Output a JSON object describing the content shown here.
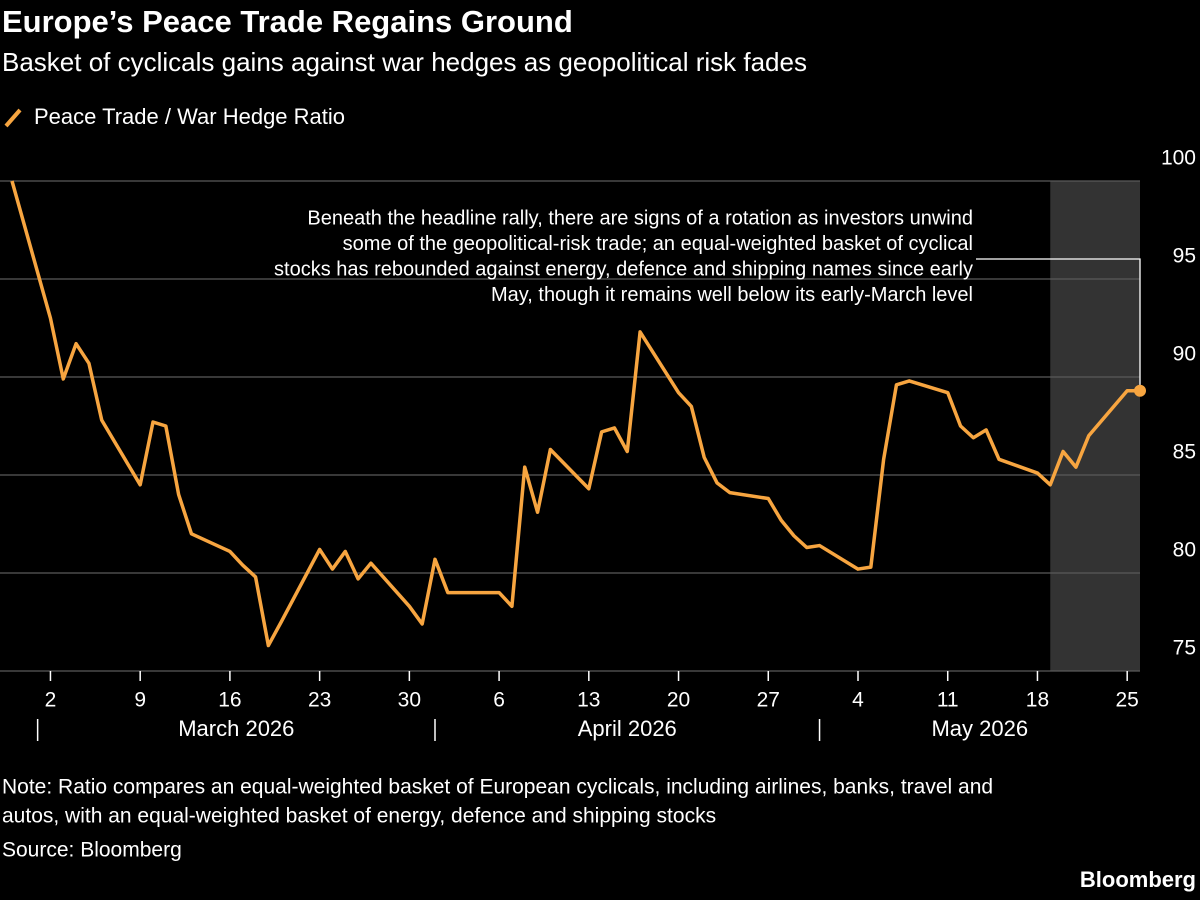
{
  "chart_data": {
    "type": "line",
    "title": "Europe’s Peace Trade Regains Ground",
    "subtitle": "Basket of cyclicals gains against war hedges as geopolitical risk fades",
    "x": [
      "2026-02-27",
      "2026-03-02",
      "2026-03-03",
      "2026-03-04",
      "2026-03-05",
      "2026-03-06",
      "2026-03-09",
      "2026-03-10",
      "2026-03-11",
      "2026-03-12",
      "2026-03-13",
      "2026-03-16",
      "2026-03-17",
      "2026-03-18",
      "2026-03-19",
      "2026-03-20",
      "2026-03-23",
      "2026-03-24",
      "2026-03-25",
      "2026-03-26",
      "2026-03-27",
      "2026-03-30",
      "2026-03-31",
      "2026-04-01",
      "2026-04-02",
      "2026-04-06",
      "2026-04-07",
      "2026-04-08",
      "2026-04-09",
      "2026-04-10",
      "2026-04-13",
      "2026-04-14",
      "2026-04-15",
      "2026-04-16",
      "2026-04-17",
      "2026-04-20",
      "2026-04-21",
      "2026-04-22",
      "2026-04-23",
      "2026-04-24",
      "2026-04-27",
      "2026-04-28",
      "2026-04-29",
      "2026-04-30",
      "2026-05-01",
      "2026-05-04",
      "2026-05-05",
      "2026-05-06",
      "2026-05-07",
      "2026-05-08",
      "2026-05-11",
      "2026-05-12",
      "2026-05-13",
      "2026-05-14",
      "2026-05-15",
      "2026-05-18",
      "2026-05-19",
      "2026-05-20",
      "2026-05-21",
      "2026-05-22",
      "2026-05-25",
      "2026-05-26"
    ],
    "series": [
      {
        "name": "Peace Trade / War Hedge Ratio",
        "color": "#f7a540",
        "values": [
          100,
          93.0,
          89.9,
          91.7,
          90.7,
          87.8,
          84.5,
          87.7,
          87.5,
          84.0,
          82.0,
          81.1,
          80.4,
          79.8,
          76.3,
          77.5,
          81.2,
          80.2,
          81.1,
          79.7,
          80.5,
          78.3,
          77.4,
          80.7,
          79.0,
          79.0,
          78.3,
          85.4,
          83.1,
          86.3,
          84.3,
          87.2,
          87.4,
          86.2,
          92.3,
          89.2,
          88.5,
          85.9,
          84.6,
          84.1,
          83.8,
          82.7,
          81.9,
          81.3,
          81.4,
          80.2,
          80.3,
          85.8,
          89.6,
          89.8,
          89.2,
          87.5,
          86.9,
          87.3,
          85.8,
          85.1,
          84.5,
          86.2,
          85.4,
          87.0,
          89.3,
          89.3
        ]
      }
    ],
    "xlim": [
      "2026-02-27",
      "2026-05-26"
    ],
    "xticks": [
      {
        "value": "2026-03-02",
        "label": "2"
      },
      {
        "value": "2026-03-09",
        "label": "9"
      },
      {
        "value": "2026-03-16",
        "label": "16"
      },
      {
        "value": "2026-03-23",
        "label": "23"
      },
      {
        "value": "2026-03-30",
        "label": "30"
      },
      {
        "value": "2026-04-06",
        "label": "6"
      },
      {
        "value": "2026-04-13",
        "label": "13"
      },
      {
        "value": "2026-04-20",
        "label": "20"
      },
      {
        "value": "2026-04-27",
        "label": "27"
      },
      {
        "value": "2026-05-04",
        "label": "4"
      },
      {
        "value": "2026-05-11",
        "label": "11"
      },
      {
        "value": "2026-05-18",
        "label": "18"
      },
      {
        "value": "2026-05-25",
        "label": "25"
      }
    ],
    "month_starts": [
      "2026-03-01",
      "2026-04-01",
      "2026-05-01"
    ],
    "month_labels": [
      "March 2026",
      "April 2026",
      "May 2026"
    ],
    "ylim": [
      75,
      100
    ],
    "yticks": [
      75,
      80,
      85,
      90,
      95,
      100
    ],
    "grid": true,
    "shade": [
      "2026-05-19",
      "2026-05-26"
    ],
    "annotation": [
      "Beneath the headline rally, there are signs of a rotation as investors unwind",
      "some of the geopolitical-risk trade; an equal-weighted basket of cyclical",
      "stocks has rebounded against energy, defence and shipping names since early",
      "May, though it remains well below its early-March level"
    ],
    "note": [
      "Note: Ratio compares an equal-weighted basket of European cyclicals, including airlines, banks, travel and",
      "autos, with an equal-weighted basket of energy, defence and shipping stocks"
    ],
    "source": "Source: Bloomberg",
    "brand": "Bloomberg"
  }
}
